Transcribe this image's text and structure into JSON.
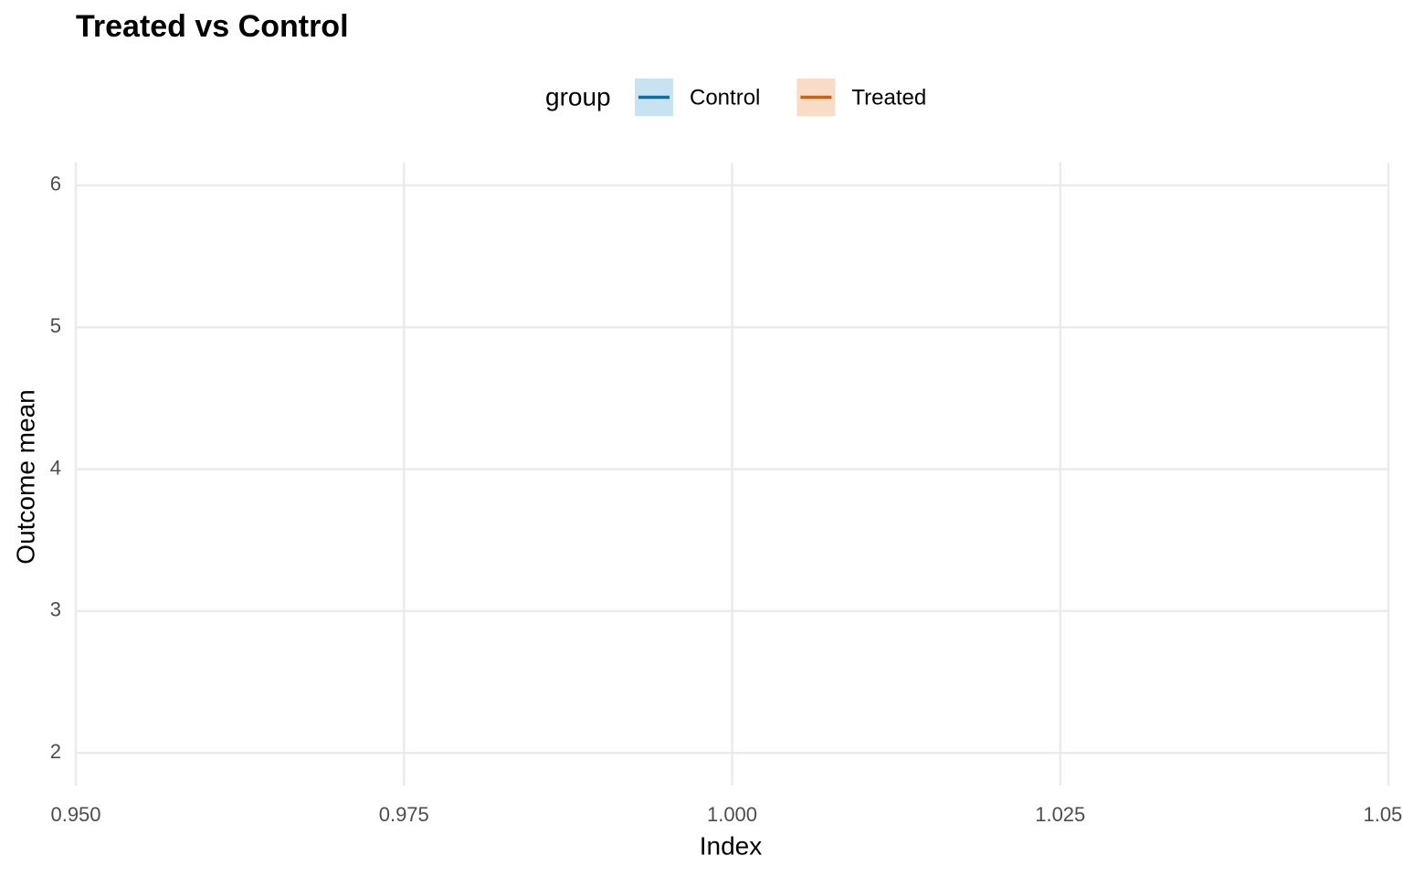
{
  "chart_data": {
    "type": "line",
    "title": "Treated vs Control",
    "x_label": "Index",
    "y_label": "Outcome mean",
    "legend_title": "group",
    "series": [
      {
        "name": "Control",
        "color": "#0072b2",
        "fill": "#c8e2f1",
        "values": []
      },
      {
        "name": "Treated",
        "color": "#d55e00",
        "fill": "#f9dcc8",
        "values": []
      }
    ],
    "xlim": [
      0.95,
      1.05
    ],
    "xticks": [
      {
        "value": 0.95,
        "label": "0.950"
      },
      {
        "value": 0.975,
        "label": "0.975"
      },
      {
        "value": 1.0,
        "label": "1.000"
      },
      {
        "value": 1.025,
        "label": "1.025"
      },
      {
        "value": 1.05,
        "label": "1.050"
      }
    ],
    "ylim": [
      1.77,
      6.16
    ],
    "yticks": [
      2,
      3,
      4,
      5,
      6
    ],
    "grid": true,
    "legend": "top"
  }
}
